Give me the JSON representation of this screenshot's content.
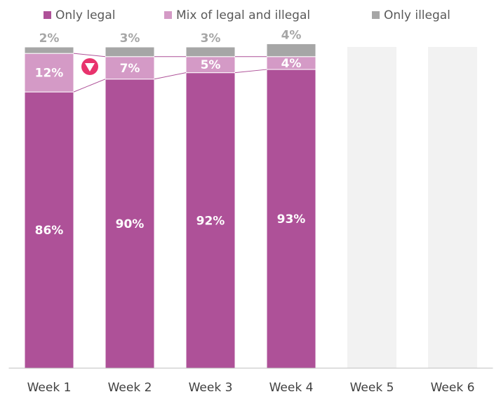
{
  "chart_data": {
    "type": "stacked_bar",
    "categories": [
      "Week 1",
      "Week 2",
      "Week 3",
      "Week 4",
      "Week 5",
      "Week 6"
    ],
    "series": [
      {
        "name": "Only legal",
        "color": "#ae5198",
        "values": [
          86,
          90,
          92,
          93,
          null,
          null
        ],
        "value_labels": [
          "86%",
          "90%",
          "92%",
          "93%",
          null,
          null
        ]
      },
      {
        "name": "Mix of legal and illegal",
        "color": "#d49ac6",
        "values": [
          12,
          7,
          5,
          4,
          null,
          null
        ],
        "value_labels": [
          "12%",
          "7%",
          "5%",
          "4%",
          null,
          null
        ]
      },
      {
        "name": "Only illegal",
        "color": "#a6a6a6",
        "values": [
          2,
          3,
          3,
          4,
          null,
          null
        ],
        "value_labels": [
          "2%",
          "3%",
          "3%",
          "4%",
          null,
          null
        ]
      }
    ],
    "ylim": [
      0,
      100
    ],
    "legend": "top"
  }
}
